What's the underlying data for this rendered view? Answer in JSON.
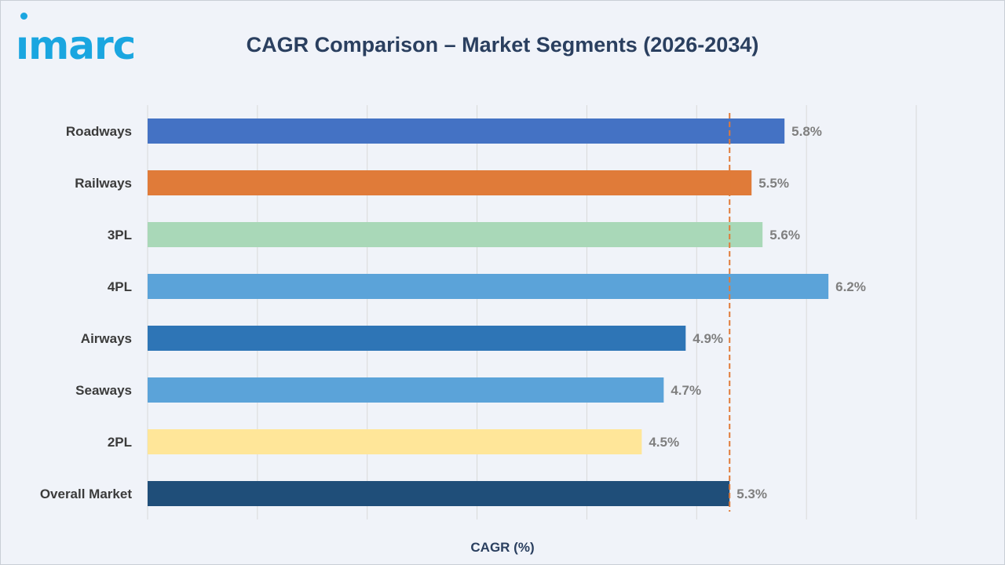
{
  "logo": {
    "text": "ımarc"
  },
  "chart_data": {
    "type": "bar",
    "orientation": "horizontal",
    "title": "CAGR Comparison – Market Segments (2026-2034)",
    "xlabel": "CAGR (%)",
    "ylabel": "",
    "xlim": [
      0,
      7
    ],
    "grid": true,
    "categories": [
      "Roadways",
      "Railways",
      "3PL",
      "4PL",
      "Airways",
      "Seaways",
      "2PL",
      "Overall Market"
    ],
    "values": [
      5.8,
      5.5,
      5.6,
      6.2,
      4.9,
      4.7,
      4.5,
      5.3
    ],
    "value_labels": [
      "5.8%",
      "5.5%",
      "5.6%",
      "6.2%",
      "4.9%",
      "4.7%",
      "4.5%",
      "5.3%"
    ],
    "colors": [
      "#4472c4",
      "#e07b39",
      "#a9d8b8",
      "#5ba3d9",
      "#2e75b6",
      "#5ba3d9",
      "#ffe699",
      "#1f4e79"
    ],
    "reference_line": {
      "value": 5.3,
      "color": "#e07b39",
      "style": "dashed"
    }
  }
}
